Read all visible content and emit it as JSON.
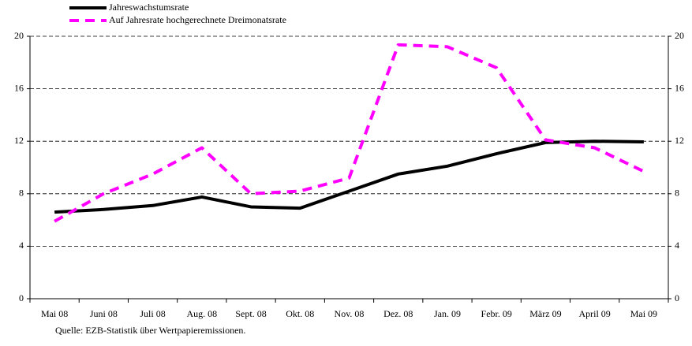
{
  "chart_data": {
    "type": "line",
    "categories": [
      "Mai 08",
      "Juni 08",
      "Juli 08",
      "Aug. 08",
      "Sept. 08",
      "Okt. 08",
      "Nov. 08",
      "Dez. 08",
      "Jan. 09",
      "Febr. 09",
      "März 09",
      "April 09",
      "Mai 09"
    ],
    "series": [
      {
        "name": "Jahreswachstumsrate",
        "color": "#000000",
        "dash": false,
        "values": [
          6.6,
          6.8,
          7.1,
          7.75,
          7.0,
          6.9,
          8.2,
          9.5,
          10.1,
          11.05,
          11.9,
          12.0,
          11.95
        ]
      },
      {
        "name": "Auf Jahresrate hochgerechnete Dreimonatsrate",
        "color": "#ff00ff",
        "dash": true,
        "values": [
          5.9,
          8.0,
          9.5,
          11.5,
          8.0,
          8.2,
          9.2,
          19.35,
          19.2,
          17.6,
          12.1,
          11.5,
          9.7
        ]
      }
    ],
    "ylim": [
      0,
      20
    ],
    "yticks": [
      0,
      4,
      8,
      12,
      16,
      20
    ],
    "y2lim": [
      0,
      20
    ],
    "y2ticks": [
      0,
      4,
      8,
      12,
      16,
      20
    ],
    "grid": true,
    "source": "Quelle: EZB-Statistik über Wertpapieremissionen."
  }
}
